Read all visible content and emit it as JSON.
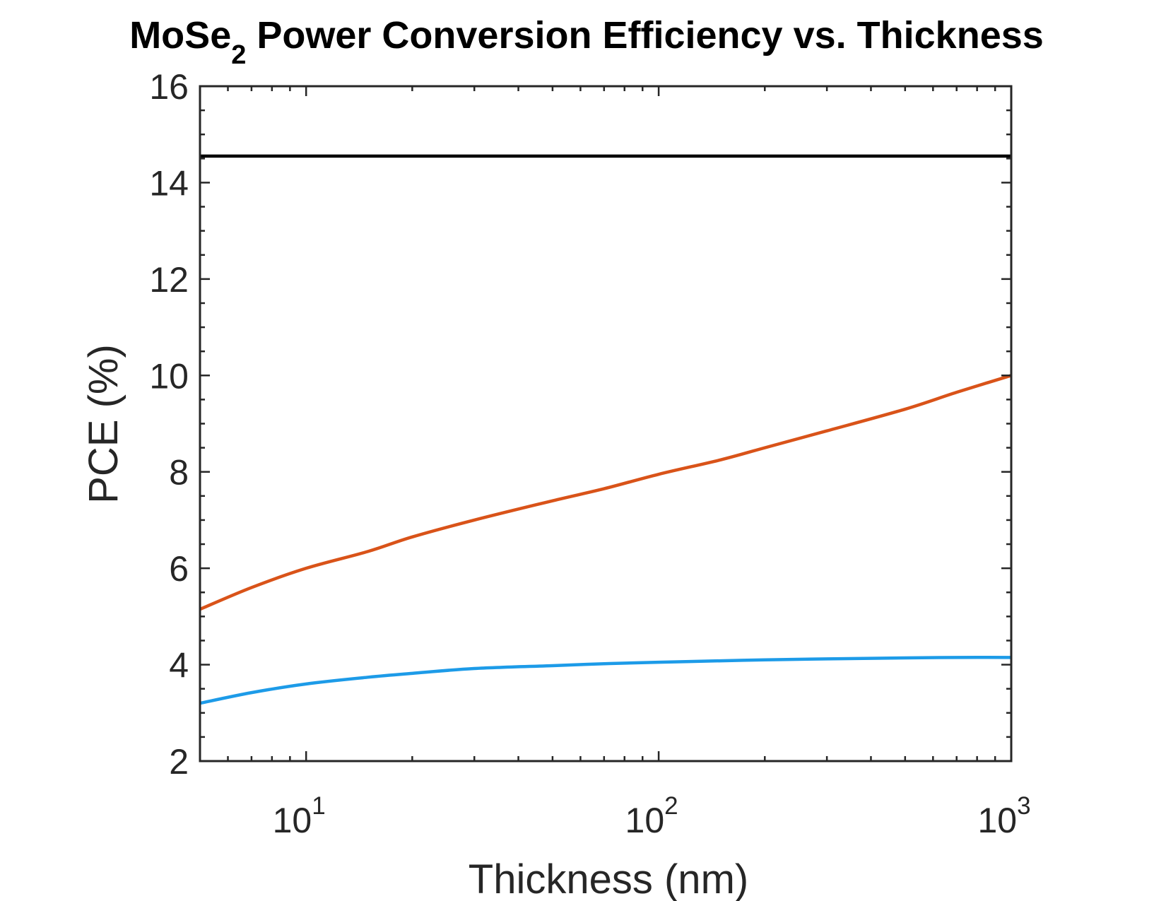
{
  "chart_data": {
    "type": "line",
    "title": {
      "main": "MoSe",
      "subscript": "2",
      "rest": " Power Conversion Efficiency vs. Thickness"
    },
    "xlabel": "Thickness (nm)",
    "ylabel": "PCE (%)",
    "x_scale": "log",
    "xlim": [
      5,
      1000
    ],
    "ylim": [
      2,
      16
    ],
    "x_ticks": [
      {
        "value": 10,
        "base": "10",
        "exponent": "1"
      },
      {
        "value": 100,
        "base": "10",
        "exponent": "2"
      },
      {
        "value": 1000,
        "base": "10",
        "exponent": "3"
      }
    ],
    "y_ticks": [
      2,
      4,
      6,
      8,
      10,
      12,
      14,
      16
    ],
    "grid": false,
    "legend": "none",
    "axis_color": "#262626",
    "series": [
      {
        "color": "#000000",
        "x": [
          5,
          1000
        ],
        "y": [
          14.55,
          14.55
        ]
      },
      {
        "color": "#D95319",
        "x": [
          5,
          7,
          10,
          15,
          20,
          30,
          50,
          70,
          100,
          150,
          200,
          300,
          500,
          700,
          1000
        ],
        "y": [
          5.15,
          5.6,
          6.0,
          6.35,
          6.65,
          7.0,
          7.4,
          7.65,
          7.95,
          8.25,
          8.5,
          8.85,
          9.3,
          9.65,
          10.0
        ]
      },
      {
        "color": "#1D9BE8",
        "x": [
          5,
          7,
          10,
          15,
          20,
          30,
          50,
          70,
          100,
          150,
          200,
          300,
          500,
          700,
          1000
        ],
        "y": [
          3.2,
          3.42,
          3.6,
          3.74,
          3.82,
          3.92,
          3.98,
          4.02,
          4.05,
          4.08,
          4.1,
          4.12,
          4.14,
          4.15,
          4.15
        ]
      }
    ]
  }
}
